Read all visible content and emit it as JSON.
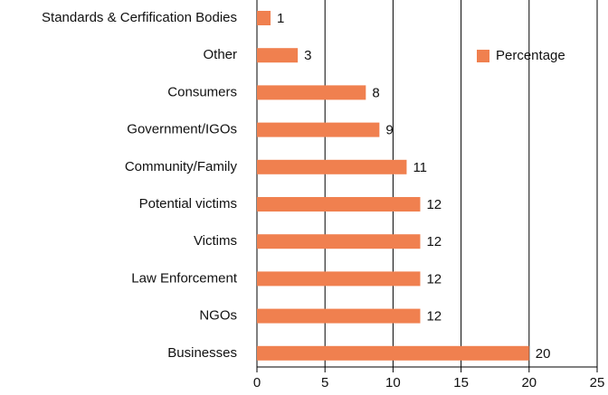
{
  "chart_data": {
    "type": "bar",
    "orientation": "horizontal",
    "categories": [
      "Standards & Cerfification Bodies",
      "Other",
      "Consumers",
      "Government/IGOs",
      "Community/Family",
      "Potential victims",
      "Victims",
      "Law Enforcement",
      "NGOs",
      "Businesses"
    ],
    "series": [
      {
        "name": "Percentage",
        "color": "#f0804f",
        "values": [
          1,
          3,
          8,
          9,
          11,
          12,
          12,
          12,
          12,
          20
        ]
      }
    ],
    "xlim": [
      0,
      25
    ],
    "xticks": [
      0,
      5,
      10,
      15,
      20,
      25
    ],
    "grid": true,
    "legend": "upper right"
  }
}
